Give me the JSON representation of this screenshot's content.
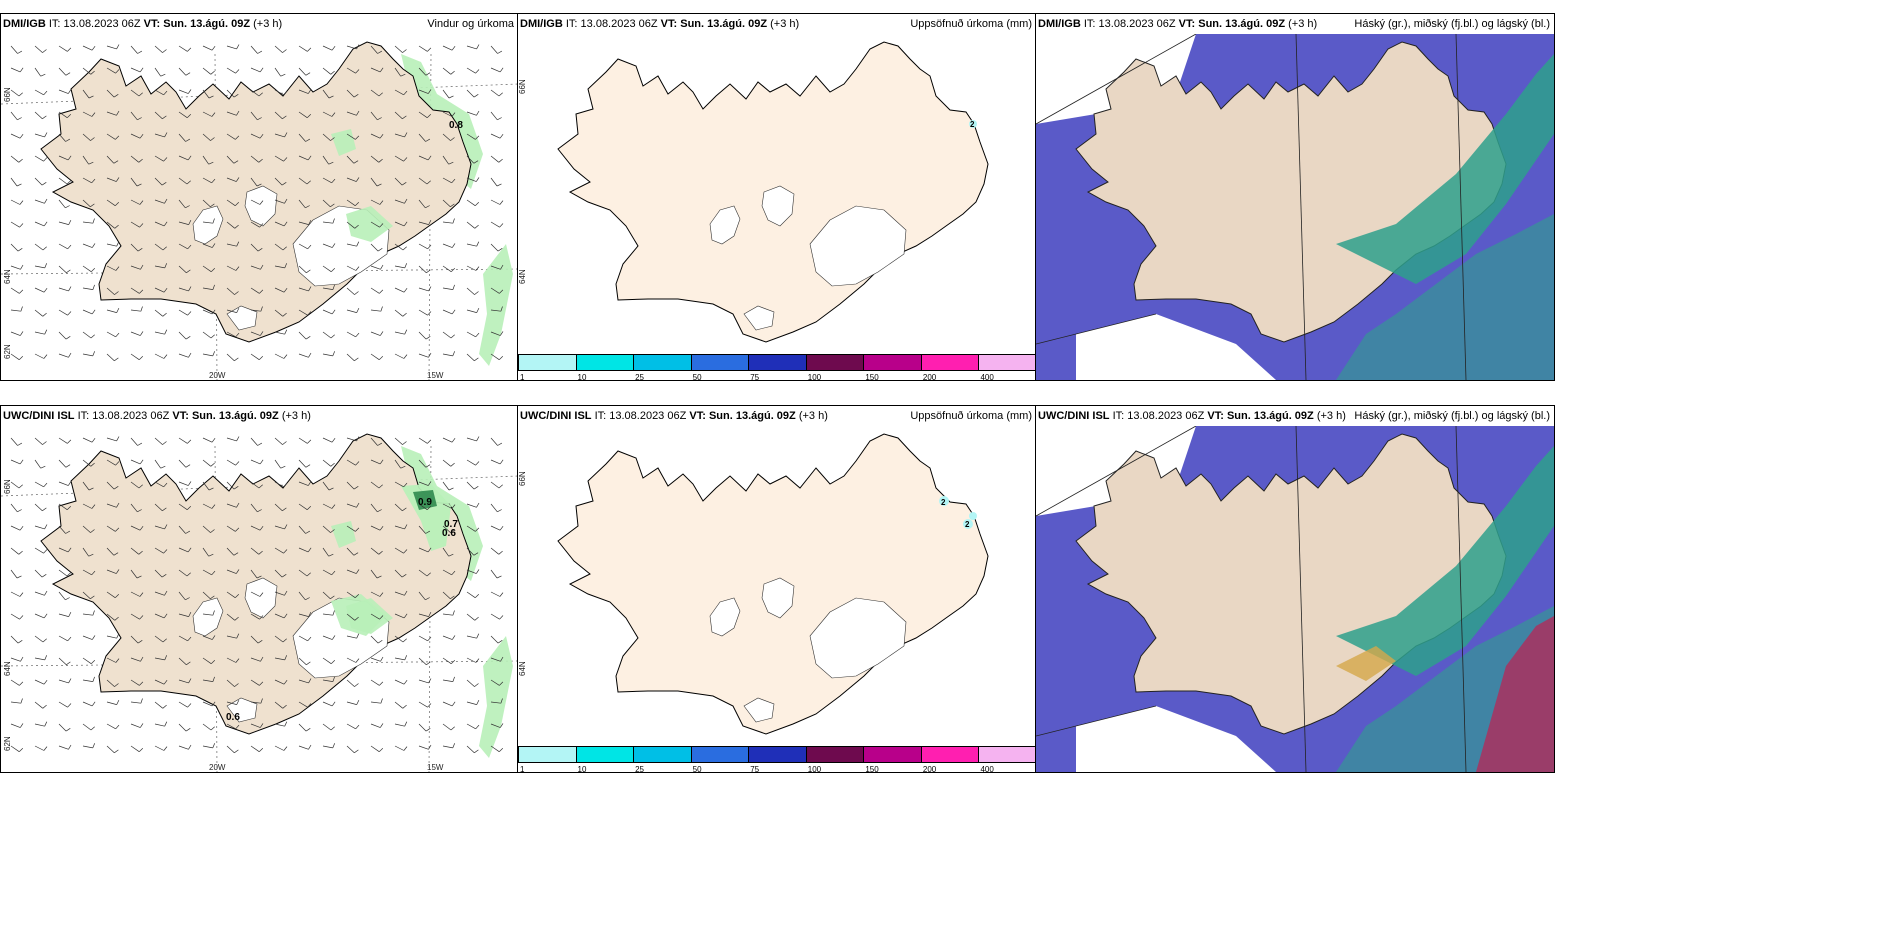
{
  "rows": [
    {
      "model": "DMI/IGB",
      "it_label": "IT:",
      "it_value": "13.08.2023 06Z",
      "vt_label": "VT:",
      "vt_value": "Sun. 13.ágú. 09Z",
      "lead": "(+3 h)",
      "panels": {
        "wind": {
          "title": "Vindur og úrkoma",
          "labels": [
            "0.8"
          ]
        },
        "precip": {
          "title": "Uppsöfnuð úrkoma (mm)",
          "labels": [
            "2"
          ]
        },
        "cloud": {
          "title": "Háský (gr.), miðský (fj.bl.) og lágský (bl.)"
        }
      }
    },
    {
      "model": "UWC/DINI ISL",
      "it_label": "IT:",
      "it_value": "13.08.2023 06Z",
      "vt_label": "VT:",
      "vt_value": "Sun. 13.ágú. 09Z",
      "lead": "(+3 h)",
      "panels": {
        "wind": {
          "title": "Vindur og úrkoma",
          "labels": [
            "0.9",
            "0.7",
            "0.6",
            "0.6"
          ]
        },
        "precip": {
          "title": "Uppsöfnuð úrkoma (mm)",
          "labels": [
            "2",
            "2"
          ]
        },
        "cloud": {
          "title": "Háský (gr.), miðský (fj.bl.) og lágský (bl.)"
        }
      }
    }
  ],
  "axes": {
    "lat_upper": "66N",
    "lat_lower": "64N",
    "lat_bottom": "62N",
    "lon_left": "20W",
    "lon_right": "15W",
    "lat_right_upper": "66N",
    "lat_right_lower": "64N"
  },
  "colorbar": {
    "ticks": [
      "1",
      "10",
      "25",
      "50",
      "75",
      "100",
      "150",
      "200",
      "400"
    ],
    "colors": [
      "#b3f5f5",
      "#00e5e5",
      "#00bfe6",
      "#2a6de0",
      "#1f2fb8",
      "#6e0a4e",
      "#b8008a",
      "#ff1fb0",
      "#f5b3f0"
    ]
  },
  "map_colors": {
    "land_wind": "#efe1cf",
    "land_precip": "#fdf0e2",
    "ocean_cloud": "#5a5ac8",
    "cloud_dark": "#4848b8",
    "mid_cloud": "#2ea08c",
    "high_cloud": "#c02050",
    "precip_green": "#b8f0b8"
  }
}
